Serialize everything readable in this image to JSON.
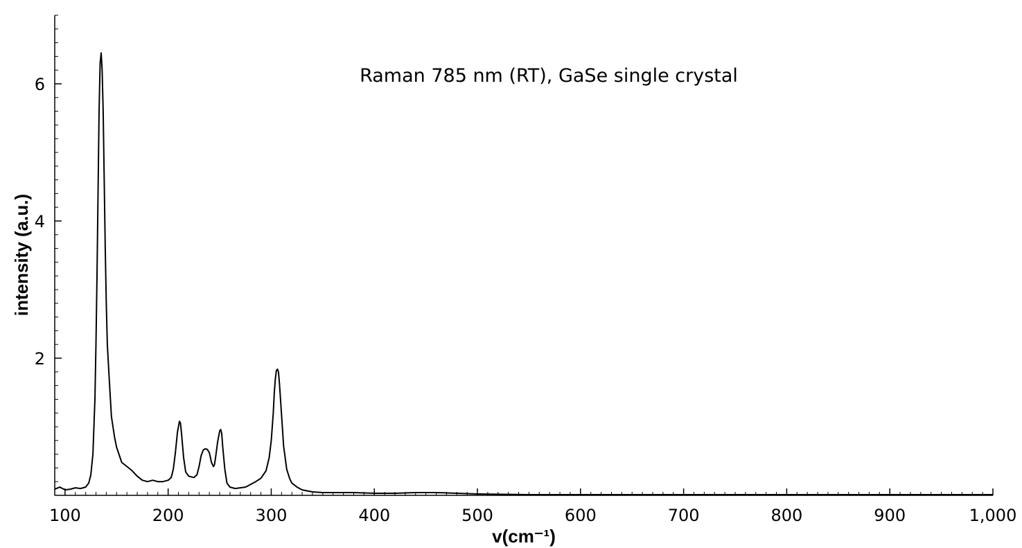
{
  "chart_data": {
    "type": "line",
    "title": "",
    "annotation": "Raman 785 nm (RT), GaSe single crystal",
    "xlabel": "v(cm⁻¹)",
    "ylabel": "intensity (a.u.)",
    "xlim": [
      90,
      1000
    ],
    "ylim": [
      0,
      7
    ],
    "x_ticks": [
      100,
      200,
      300,
      400,
      500,
      600,
      700,
      800,
      900,
      1000
    ],
    "x_tick_labels": [
      "100",
      "200",
      "300",
      "400",
      "500",
      "600",
      "700",
      "800",
      "900",
      "1,000"
    ],
    "y_ticks": [
      2,
      4,
      6
    ],
    "y_tick_labels": [
      "2",
      "4",
      "6"
    ],
    "grid": false,
    "legend": "none",
    "colors": {
      "line": "#000000",
      "axes": "#000000",
      "background": "#ffffff"
    },
    "series": [
      {
        "x": [
          90,
          95,
          100,
          105,
          110,
          115,
          120,
          123,
          125,
          127,
          129,
          130,
          131,
          132,
          133,
          134,
          135,
          136,
          137,
          138,
          139,
          140,
          141,
          143,
          145,
          148,
          150,
          155,
          160,
          165,
          170,
          175,
          180,
          185,
          190,
          195,
          200,
          203,
          205,
          207,
          209,
          211,
          212,
          213,
          215,
          217,
          220,
          225,
          228,
          230,
          232,
          234,
          236,
          238,
          240,
          242,
          244,
          245,
          246,
          248,
          250,
          251,
          252,
          253,
          255,
          257,
          260,
          265,
          270,
          275,
          280,
          285,
          290,
          295,
          298,
          300,
          302,
          303,
          304,
          305,
          306,
          307,
          308,
          310,
          312,
          315,
          318,
          320,
          325,
          330,
          340,
          350,
          360,
          380,
          400,
          420,
          440,
          460,
          480,
          500,
          550,
          600,
          650,
          700,
          800,
          900,
          1000
        ],
        "y": [
          0.09,
          0.12,
          0.08,
          0.09,
          0.11,
          0.1,
          0.12,
          0.18,
          0.3,
          0.6,
          1.4,
          2.2,
          3.2,
          4.4,
          5.6,
          6.3,
          6.45,
          6.2,
          5.6,
          4.6,
          3.6,
          2.8,
          2.2,
          1.65,
          1.15,
          0.85,
          0.7,
          0.48,
          0.42,
          0.36,
          0.28,
          0.22,
          0.2,
          0.22,
          0.2,
          0.2,
          0.22,
          0.26,
          0.38,
          0.62,
          0.92,
          1.08,
          1.05,
          0.9,
          0.55,
          0.34,
          0.28,
          0.26,
          0.3,
          0.42,
          0.58,
          0.66,
          0.68,
          0.67,
          0.62,
          0.48,
          0.42,
          0.45,
          0.55,
          0.78,
          0.94,
          0.96,
          0.9,
          0.7,
          0.38,
          0.18,
          0.12,
          0.1,
          0.11,
          0.12,
          0.16,
          0.2,
          0.25,
          0.36,
          0.55,
          0.8,
          1.2,
          1.5,
          1.7,
          1.82,
          1.84,
          1.8,
          1.62,
          1.18,
          0.72,
          0.38,
          0.24,
          0.18,
          0.12,
          0.08,
          0.05,
          0.04,
          0.04,
          0.04,
          0.03,
          0.03,
          0.04,
          0.04,
          0.03,
          0.02,
          0.01,
          0.01,
          0.01,
          0.01,
          0.01,
          0.01,
          0.01
        ]
      }
    ]
  }
}
